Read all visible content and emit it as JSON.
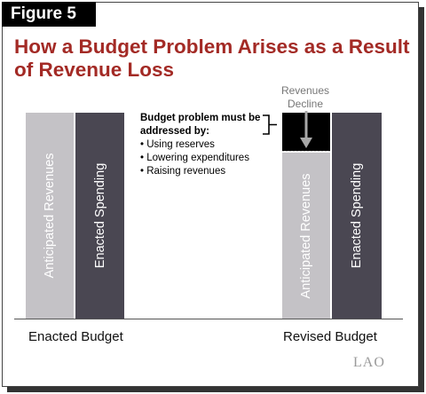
{
  "figure_label": "Figure 5",
  "title": "How a Budget Problem Arises as a Result of Revenue Loss",
  "colors": {
    "title": "#a32a25",
    "revenues_bar": "#c4c2c6",
    "spending_bar": "#4a4752",
    "decline_box": "#000000"
  },
  "enacted": {
    "category": "Enacted Budget",
    "revenues_label": "Anticipated Revenues",
    "spending_label": "Enacted Spending"
  },
  "revised": {
    "category": "Revised Budget",
    "revenues_label": "Anticipated Revenues",
    "spending_label": "Enacted Spending",
    "decline_label": "Revenues Decline"
  },
  "note": {
    "title": "Budget problem must be addressed by:",
    "items": [
      "Using reserves",
      "Lowering expenditures",
      "Raising revenues"
    ]
  },
  "source_logo": "LAO"
}
